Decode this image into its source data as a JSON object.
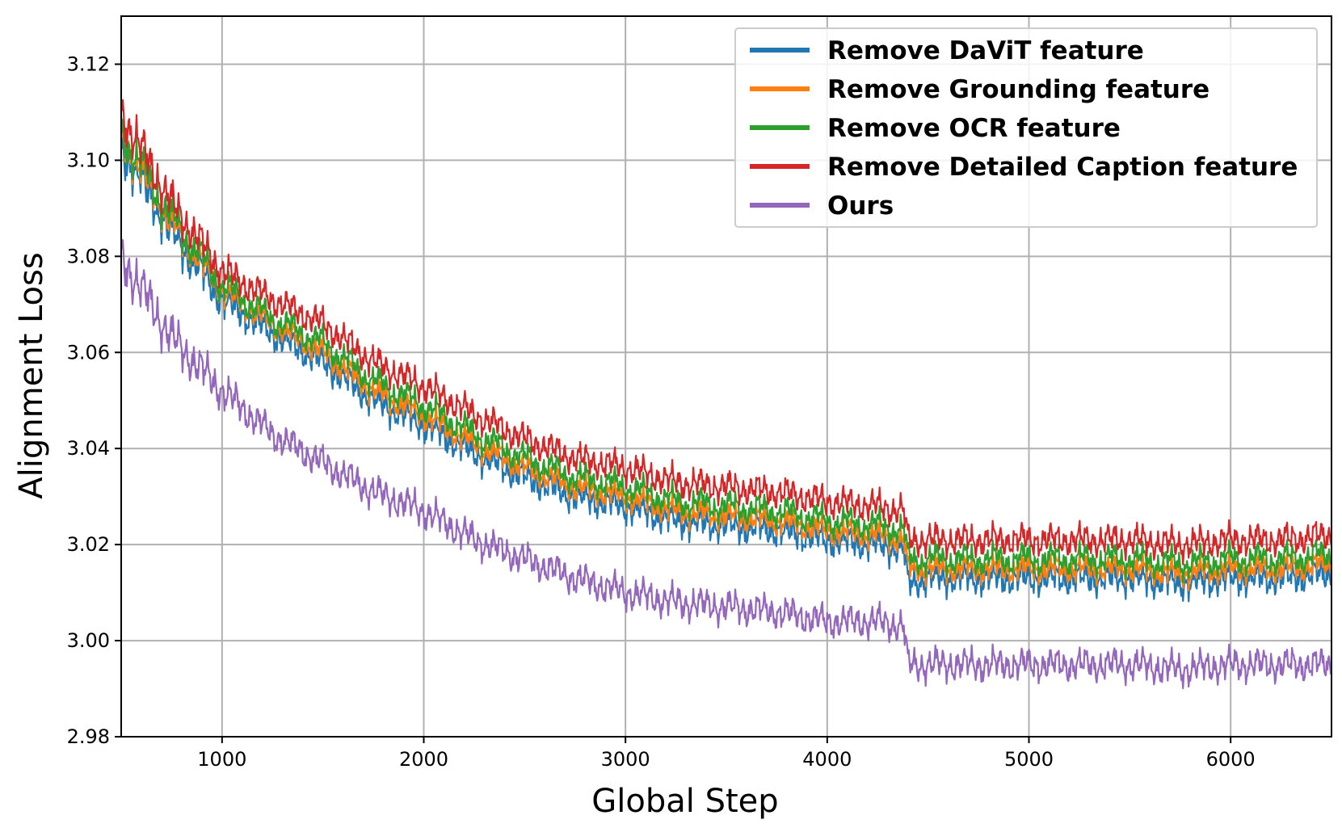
{
  "chart_data": {
    "type": "line",
    "title": "",
    "xlabel": "Global Step",
    "ylabel": "Alignment Loss",
    "xlim": [
      500,
      6500
    ],
    "ylim": [
      2.98,
      3.13
    ],
    "xticks": [
      1000,
      2000,
      3000,
      4000,
      5000,
      6000
    ],
    "yticks": [
      2.98,
      3.0,
      3.02,
      3.04,
      3.06,
      3.08,
      3.1,
      3.12
    ],
    "xtick_labels": [
      "1000",
      "2000",
      "3000",
      "4000",
      "5000",
      "6000"
    ],
    "ytick_labels": [
      "2.98",
      "3.00",
      "3.02",
      "3.04",
      "3.06",
      "3.08",
      "3.10",
      "3.12"
    ],
    "grid": true,
    "legend_position": "top-right",
    "x": [
      500,
      750,
      1000,
      1250,
      1500,
      1750,
      2000,
      2250,
      2500,
      2750,
      3000,
      3250,
      3500,
      3750,
      4000,
      4250,
      4380,
      4400,
      4500,
      4750,
      5000,
      5250,
      5500,
      5750,
      6000,
      6250,
      6500
    ],
    "series": [
      {
        "name": "Remove DaViT feature",
        "color": "#1f77b4",
        "values": [
          3.103,
          3.085,
          3.071,
          3.064,
          3.058,
          3.05,
          3.045,
          3.039,
          3.034,
          3.03,
          3.028,
          3.025,
          3.024,
          3.023,
          3.021,
          3.02,
          3.019,
          3.012,
          3.013,
          3.013,
          3.013,
          3.013,
          3.013,
          3.012,
          3.013,
          3.013,
          3.014
        ]
      },
      {
        "name": "Remove Grounding feature",
        "color": "#ff7f0e",
        "values": [
          3.105,
          3.087,
          3.073,
          3.066,
          3.06,
          3.052,
          3.047,
          3.041,
          3.036,
          3.032,
          3.03,
          3.027,
          3.026,
          3.025,
          3.023,
          3.022,
          3.021,
          3.015,
          3.015,
          3.015,
          3.015,
          3.015,
          3.015,
          3.014,
          3.015,
          3.015,
          3.016
        ]
      },
      {
        "name": "Remove OCR feature",
        "color": "#2ca02c",
        "values": [
          3.106,
          3.088,
          3.074,
          3.067,
          3.062,
          3.054,
          3.049,
          3.043,
          3.038,
          3.034,
          3.032,
          3.029,
          3.028,
          3.027,
          3.025,
          3.024,
          3.023,
          3.017,
          3.017,
          3.017,
          3.017,
          3.017,
          3.017,
          3.016,
          3.017,
          3.017,
          3.018
        ]
      },
      {
        "name": "Remove Detailed Caption feature",
        "color": "#d62728",
        "values": [
          3.11,
          3.091,
          3.077,
          3.071,
          3.066,
          3.058,
          3.053,
          3.047,
          3.042,
          3.038,
          3.036,
          3.033,
          3.032,
          3.031,
          3.029,
          3.028,
          3.027,
          3.021,
          3.021,
          3.021,
          3.021,
          3.021,
          3.021,
          3.02,
          3.021,
          3.021,
          3.022
        ]
      },
      {
        "name": "Ours",
        "color": "#9467bd",
        "values": [
          3.08,
          3.063,
          3.052,
          3.043,
          3.037,
          3.031,
          3.027,
          3.021,
          3.017,
          3.013,
          3.01,
          3.008,
          3.007,
          3.006,
          3.004,
          3.004,
          3.003,
          2.995,
          2.995,
          2.995,
          2.995,
          2.995,
          2.995,
          2.994,
          2.995,
          2.995,
          2.995
        ]
      }
    ]
  }
}
